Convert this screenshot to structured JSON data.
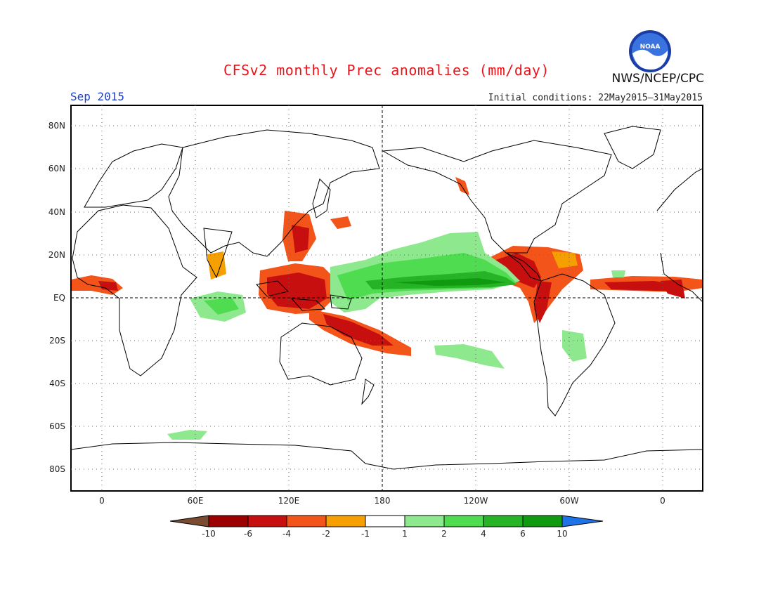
{
  "title": "CFSv2 monthly Prec anomalies (mm/day)",
  "forecast_month": "Sep 2015",
  "initial_conditions": "Initial conditions: 22May2015–31May2015",
  "agency": "NWS/NCEP/CPC",
  "logo_text": "NOAA",
  "map": {
    "lat_labels": [
      "80N",
      "60N",
      "40N",
      "20N",
      "EQ",
      "20S",
      "40S",
      "60S",
      "80S"
    ],
    "lon_labels": [
      "0",
      "60E",
      "120E",
      "180",
      "120W",
      "60W",
      "0"
    ]
  },
  "colorbar": {
    "ticks": [
      "-10",
      "-6",
      "-4",
      "-2",
      "-1",
      "1",
      "2",
      "4",
      "6",
      "10"
    ],
    "colors": {
      "lt_-10": "#7a4b30",
      "-10_-6": "#9c0000",
      "-6_-4": "#c80f0f",
      "-4_-2": "#f2541a",
      "-2_-1": "#f5a000",
      "-1_1": "#ffffff",
      "1_2": "#8ee98e",
      "2_4": "#50dc50",
      "4_6": "#26b426",
      "6_10": "#0f9a0f",
      "gt_10": "#1e74e6"
    }
  }
}
